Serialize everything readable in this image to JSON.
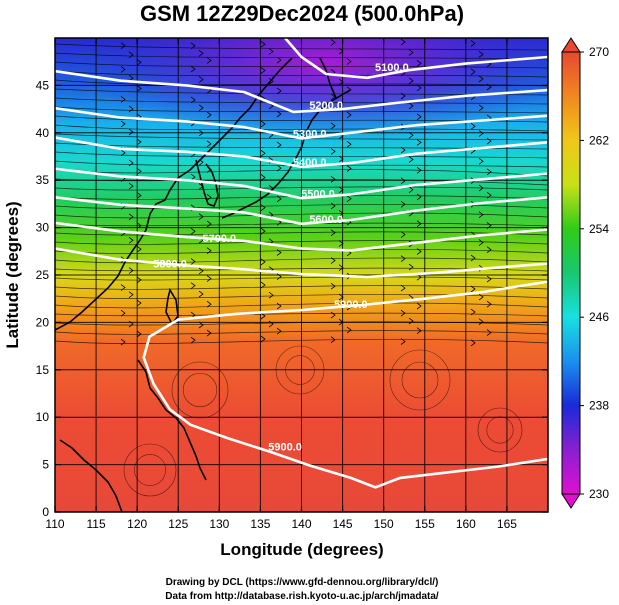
{
  "title": "GSM 12Z29Dec2024 (500.0hPa)",
  "xlabel": "Longitude (degrees)",
  "ylabel": "Latitude (degrees)",
  "credits": {
    "line1": "Drawing by DCL (https://www.gfd-dennou.org/library/dcl/)",
    "line2": "Data from http://database.rish.kyoto-u.ac.jp/arch/jmadata/"
  },
  "chart_data": {
    "type": "heatmap",
    "xlim": [
      110,
      170
    ],
    "ylim": [
      0,
      50
    ],
    "xticks": [
      110,
      115,
      120,
      125,
      130,
      135,
      140,
      145,
      150,
      155,
      160,
      165
    ],
    "yticks": [
      0,
      5,
      10,
      15,
      20,
      25,
      30,
      35,
      40,
      45
    ],
    "colorbar": {
      "range": [
        230,
        270
      ],
      "ticks": [
        230,
        238,
        246,
        254,
        262,
        270
      ],
      "colors": [
        "#e010d0",
        "#8a1fd0",
        "#1a2ad8",
        "#1a90ee",
        "#19e0e0",
        "#18c870",
        "#30cc18",
        "#c8e018",
        "#f0c818",
        "#f08820",
        "#e84830"
      ]
    },
    "contour_labels": [
      {
        "text": "5100.0",
        "lon": 151,
        "lat": 46.5
      },
      {
        "text": "5200.0",
        "lon": 143,
        "lat": 42.5
      },
      {
        "text": "5300.0",
        "lon": 141,
        "lat": 39.5
      },
      {
        "text": "5400.0",
        "lon": 141,
        "lat": 36.5
      },
      {
        "text": "5500.0",
        "lon": 142,
        "lat": 33.2
      },
      {
        "text": "5600.0",
        "lon": 143,
        "lat": 30.5
      },
      {
        "text": "5700.0",
        "lon": 130,
        "lat": 28.5
      },
      {
        "text": "5800.0",
        "lon": 124,
        "lat": 25.8
      },
      {
        "text": "5900.0",
        "lon": 146,
        "lat": 21.5
      },
      {
        "text": "5900.0",
        "lon": 138,
        "lat": 6.5
      }
    ],
    "contours": [
      {
        "label": "5100.0",
        "points": [
          [
            138,
            50
          ],
          [
            140,
            48
          ],
          [
            143,
            46.2
          ],
          [
            148,
            45.8
          ],
          [
            153,
            46.6
          ],
          [
            160,
            47.3
          ],
          [
            170,
            48
          ]
        ]
      },
      {
        "label": "5200.0",
        "points": [
          [
            110,
            46.5
          ],
          [
            118,
            45.5
          ],
          [
            126,
            45
          ],
          [
            133,
            44.3
          ],
          [
            139,
            42.2
          ],
          [
            145,
            42.5
          ],
          [
            152,
            43.2
          ],
          [
            160,
            43.9
          ],
          [
            170,
            44.5
          ]
        ]
      },
      {
        "label": "5300.0",
        "points": [
          [
            110,
            42.6
          ],
          [
            118,
            41.6
          ],
          [
            126,
            41.2
          ],
          [
            133,
            40.6
          ],
          [
            140,
            39.4
          ],
          [
            146,
            40
          ],
          [
            154,
            40.8
          ],
          [
            162,
            41.3
          ],
          [
            170,
            41.8
          ]
        ]
      },
      {
        "label": "5400.0",
        "points": [
          [
            110,
            39.5
          ],
          [
            118,
            38.3
          ],
          [
            126,
            38
          ],
          [
            133,
            37.5
          ],
          [
            140,
            36.4
          ],
          [
            146,
            36.8
          ],
          [
            154,
            37.8
          ],
          [
            162,
            38.4
          ],
          [
            170,
            39
          ]
        ]
      },
      {
        "label": "5500.0",
        "points": [
          [
            110,
            36.2
          ],
          [
            118,
            35.4
          ],
          [
            126,
            35
          ],
          [
            133,
            34.4
          ],
          [
            140,
            33.1
          ],
          [
            146,
            33.5
          ],
          [
            154,
            34.5
          ],
          [
            162,
            35.1
          ],
          [
            170,
            35.7
          ]
        ]
      },
      {
        "label": "5600.0",
        "points": [
          [
            110,
            33.2
          ],
          [
            118,
            32.4
          ],
          [
            126,
            32
          ],
          [
            133,
            31.6
          ],
          [
            140,
            30.4
          ],
          [
            146,
            30.8
          ],
          [
            154,
            31.8
          ],
          [
            162,
            32.6
          ],
          [
            170,
            33.2
          ]
        ]
      },
      {
        "label": "5700.0",
        "points": [
          [
            110,
            30.5
          ],
          [
            118,
            29.6
          ],
          [
            126,
            29
          ],
          [
            133,
            28.6
          ],
          [
            140,
            27.8
          ],
          [
            146,
            27.6
          ],
          [
            154,
            28.4
          ],
          [
            162,
            29.2
          ],
          [
            170,
            29.8
          ]
        ]
      },
      {
        "label": "5800.0",
        "points": [
          [
            110,
            27.8
          ],
          [
            118,
            26.6
          ],
          [
            126,
            26
          ],
          [
            133,
            25.6
          ],
          [
            140,
            25.1
          ],
          [
            148,
            24.8
          ],
          [
            156,
            25.2
          ],
          [
            164,
            25.8
          ],
          [
            170,
            26.2
          ]
        ]
      },
      {
        "label": "5900.0",
        "points": [
          [
            170,
            24.3
          ],
          [
            162,
            23.2
          ],
          [
            155,
            22.5
          ],
          [
            148,
            21.9
          ],
          [
            140,
            21.3
          ],
          [
            132,
            20.9
          ],
          [
            125,
            20.3
          ],
          [
            121.5,
            18.5
          ],
          [
            120.8,
            16.3
          ],
          [
            122,
            13.5
          ],
          [
            124,
            10.8
          ],
          [
            126.5,
            9.2
          ],
          [
            131,
            7.8
          ],
          [
            136,
            6.4
          ],
          [
            141,
            4.9
          ],
          [
            146,
            3.6
          ],
          [
            149,
            2.6
          ],
          [
            152,
            3.6
          ],
          [
            158,
            4.2
          ],
          [
            164,
            4.8
          ],
          [
            170,
            5.6
          ]
        ]
      }
    ]
  }
}
